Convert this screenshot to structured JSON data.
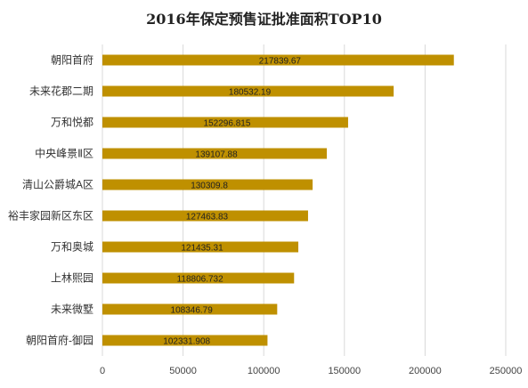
{
  "chart_data": {
    "type": "bar",
    "orientation": "horizontal",
    "title": "2016年保定预售证批准面积TOP10",
    "categories": [
      "朝阳首府",
      "未来花郡二期",
      "万和悦都",
      "中央峰景Ⅱ区",
      "清山公爵城A区",
      "裕丰家园新区东区",
      "万和奥城",
      "上林熙园",
      "未来微墅",
      "朝阳首府-御园"
    ],
    "values": [
      217839.67,
      180532.19,
      152296.815,
      139107.88,
      130309.8,
      127463.83,
      121435.31,
      118806.732,
      108346.79,
      102331.908
    ],
    "value_labels": [
      "217839.67",
      "180532.19",
      "152296.815",
      "139107.88",
      "130309.8",
      "127463.83",
      "121435.31",
      "118806.732",
      "108346.79",
      "102331.908"
    ],
    "xlim": [
      0,
      250000
    ],
    "x_ticks": [
      0,
      50000,
      100000,
      150000,
      200000,
      250000
    ],
    "grid": "vertical",
    "legend": "none",
    "bar_color": "#bf9000"
  }
}
